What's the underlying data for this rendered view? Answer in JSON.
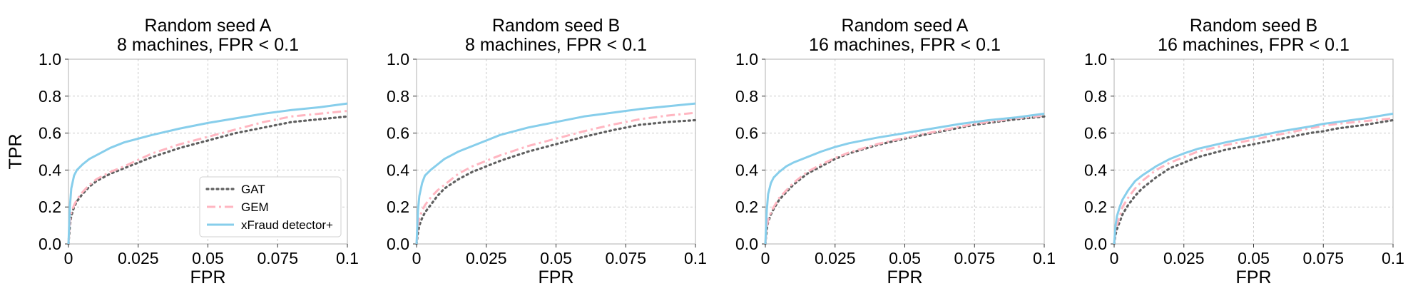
{
  "chart_data": {
    "type": "line",
    "xlabel": "FPR",
    "ylabel": "TPR",
    "xlim": [
      0,
      0.1
    ],
    "ylim": [
      0,
      1.0
    ],
    "xticks": [
      0,
      0.025,
      0.05,
      0.075,
      0.1
    ],
    "xtick_labels": [
      "0",
      "0.025",
      "0.05",
      "0.075",
      "0.1"
    ],
    "yticks": [
      0.0,
      0.2,
      0.4,
      0.6,
      0.8,
      1.0
    ],
    "ytick_labels": [
      "0.0",
      "0.2",
      "0.4",
      "0.6",
      "0.8",
      "1.0"
    ],
    "grid": true,
    "legend": {
      "placement": "lower-right",
      "panel": 0,
      "entries": [
        {
          "name": "GAT",
          "color": "#606060",
          "style": "dotted"
        },
        {
          "name": "GEM",
          "color": "#ffb6c1",
          "style": "dashdot"
        },
        {
          "name": "xFraud detector+",
          "color": "#87ceeb",
          "style": "solid"
        }
      ]
    },
    "x": [
      0,
      0.0005,
      0.001,
      0.002,
      0.003,
      0.005,
      0.0075,
      0.01,
      0.015,
      0.02,
      0.025,
      0.03,
      0.04,
      0.05,
      0.06,
      0.07,
      0.075,
      0.08,
      0.09,
      0.1
    ],
    "panels": [
      {
        "title_line1": "Random seed A",
        "title_line2": "8 machines, FPR  <  0.1",
        "series": [
          {
            "name": "GAT",
            "values": [
              0,
              0.1,
              0.15,
              0.2,
              0.23,
              0.27,
              0.31,
              0.34,
              0.38,
              0.41,
              0.44,
              0.47,
              0.52,
              0.56,
              0.6,
              0.63,
              0.645,
              0.66,
              0.675,
              0.69
            ]
          },
          {
            "name": "GEM",
            "values": [
              0,
              0.12,
              0.17,
              0.21,
              0.24,
              0.28,
              0.32,
              0.35,
              0.39,
              0.42,
              0.455,
              0.49,
              0.54,
              0.58,
              0.62,
              0.66,
              0.675,
              0.69,
              0.705,
              0.72
            ]
          },
          {
            "name": "xFraud detector+",
            "values": [
              0,
              0.2,
              0.3,
              0.37,
              0.4,
              0.43,
              0.46,
              0.48,
              0.52,
              0.55,
              0.57,
              0.59,
              0.625,
              0.655,
              0.68,
              0.705,
              0.715,
              0.725,
              0.74,
              0.76
            ]
          }
        ]
      },
      {
        "title_line1": "Random seed B",
        "title_line2": "8 machines, FPR  <  0.1",
        "series": [
          {
            "name": "GAT",
            "values": [
              0,
              0.06,
              0.1,
              0.14,
              0.17,
              0.21,
              0.26,
              0.3,
              0.35,
              0.39,
              0.42,
              0.45,
              0.5,
              0.54,
              0.58,
              0.615,
              0.63,
              0.645,
              0.66,
              0.67
            ]
          },
          {
            "name": "GEM",
            "values": [
              0,
              0.1,
              0.14,
              0.18,
              0.21,
              0.25,
              0.29,
              0.32,
              0.38,
              0.42,
              0.45,
              0.48,
              0.53,
              0.57,
              0.61,
              0.645,
              0.66,
              0.675,
              0.695,
              0.71
            ]
          },
          {
            "name": "xFraud detector+",
            "values": [
              0,
              0.18,
              0.26,
              0.33,
              0.37,
              0.4,
              0.43,
              0.46,
              0.5,
              0.53,
              0.56,
              0.59,
              0.63,
              0.66,
              0.69,
              0.71,
              0.72,
              0.73,
              0.745,
              0.76
            ]
          }
        ]
      },
      {
        "title_line1": "Random seed A",
        "title_line2": "16 machines, FPR  <  0.1",
        "series": [
          {
            "name": "GAT",
            "values": [
              0,
              0.08,
              0.12,
              0.16,
              0.19,
              0.24,
              0.28,
              0.32,
              0.38,
              0.42,
              0.46,
              0.49,
              0.535,
              0.57,
              0.6,
              0.63,
              0.645,
              0.655,
              0.675,
              0.69
            ]
          },
          {
            "name": "GEM",
            "values": [
              0,
              0.09,
              0.13,
              0.17,
              0.2,
              0.25,
              0.29,
              0.33,
              0.39,
              0.43,
              0.465,
              0.495,
              0.54,
              0.575,
              0.605,
              0.635,
              0.65,
              0.66,
              0.68,
              0.695
            ]
          },
          {
            "name": "xFraud detector+",
            "values": [
              0,
              0.18,
              0.27,
              0.33,
              0.36,
              0.39,
              0.42,
              0.44,
              0.47,
              0.5,
              0.525,
              0.545,
              0.575,
              0.6,
              0.625,
              0.65,
              0.66,
              0.67,
              0.685,
              0.705
            ]
          }
        ]
      },
      {
        "title_line1": "Random seed B",
        "title_line2": "16 machines, FPR  <  0.1",
        "series": [
          {
            "name": "GAT",
            "values": [
              0,
              0.05,
              0.08,
              0.12,
              0.16,
              0.21,
              0.26,
              0.3,
              0.36,
              0.41,
              0.44,
              0.47,
              0.51,
              0.54,
              0.57,
              0.6,
              0.61,
              0.625,
              0.645,
              0.67
            ]
          },
          {
            "name": "GEM",
            "values": [
              0,
              0.07,
              0.1,
              0.15,
              0.2,
              0.25,
              0.3,
              0.34,
              0.4,
              0.44,
              0.47,
              0.5,
              0.535,
              0.565,
              0.595,
              0.625,
              0.64,
              0.65,
              0.665,
              0.68
            ]
          },
          {
            "name": "xFraud detector+",
            "values": [
              0,
              0.1,
              0.15,
              0.2,
              0.24,
              0.29,
              0.34,
              0.37,
              0.42,
              0.46,
              0.49,
              0.515,
              0.55,
              0.58,
              0.61,
              0.635,
              0.65,
              0.66,
              0.68,
              0.705
            ]
          }
        ]
      }
    ]
  }
}
